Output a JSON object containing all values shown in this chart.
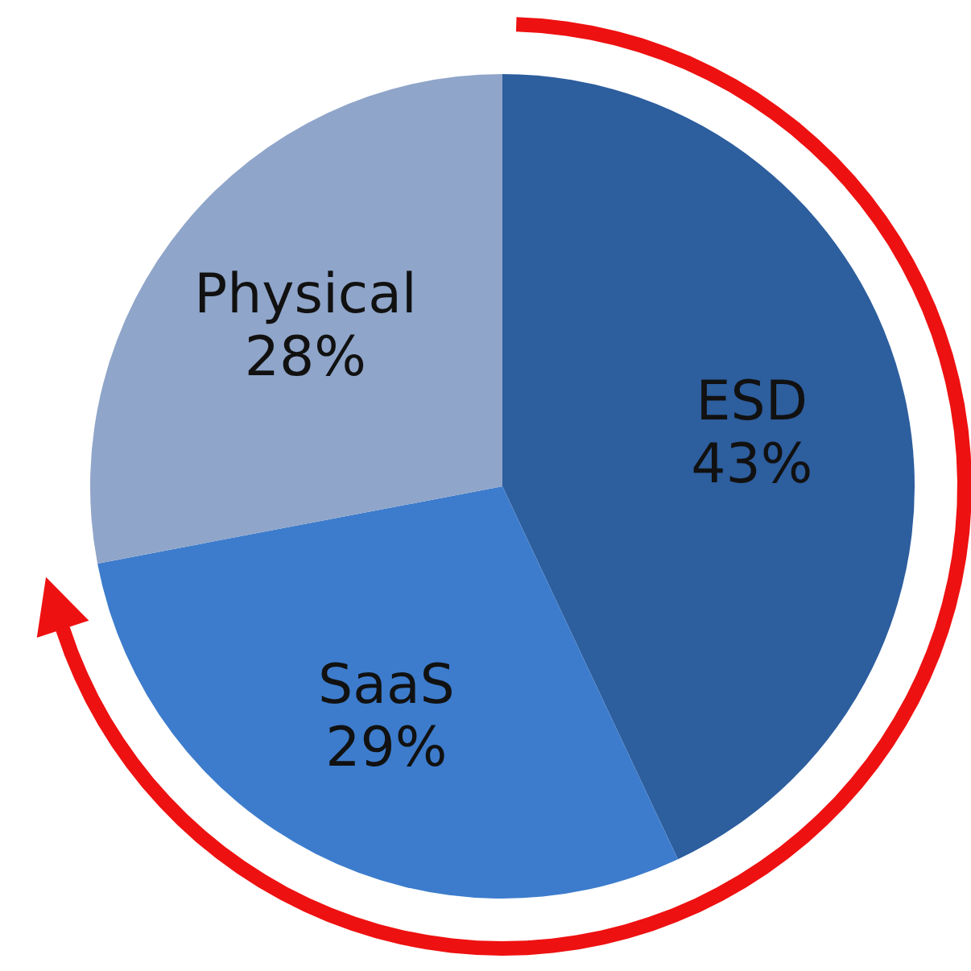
{
  "chart_data": {
    "type": "pie",
    "categories": [
      "ESD",
      "SaaS",
      "Physical"
    ],
    "values": [
      43,
      29,
      28
    ],
    "value_labels": [
      "43%",
      "29%",
      "28%"
    ],
    "colors": [
      "#2d5e9e",
      "#3d7ccc",
      "#8fa5c9"
    ]
  }
}
